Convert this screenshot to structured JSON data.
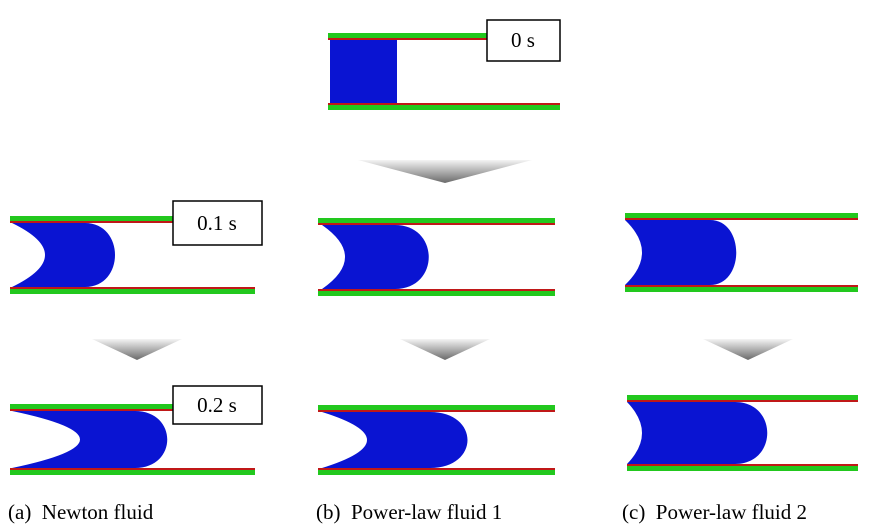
{
  "time_labels": [
    "0 s",
    "0.1 s",
    "0.2 s"
  ],
  "captions": [
    "(a)  Newton fluid",
    "(b)  Power-law fluid 1",
    "(c)  Power-law fluid 2"
  ]
}
